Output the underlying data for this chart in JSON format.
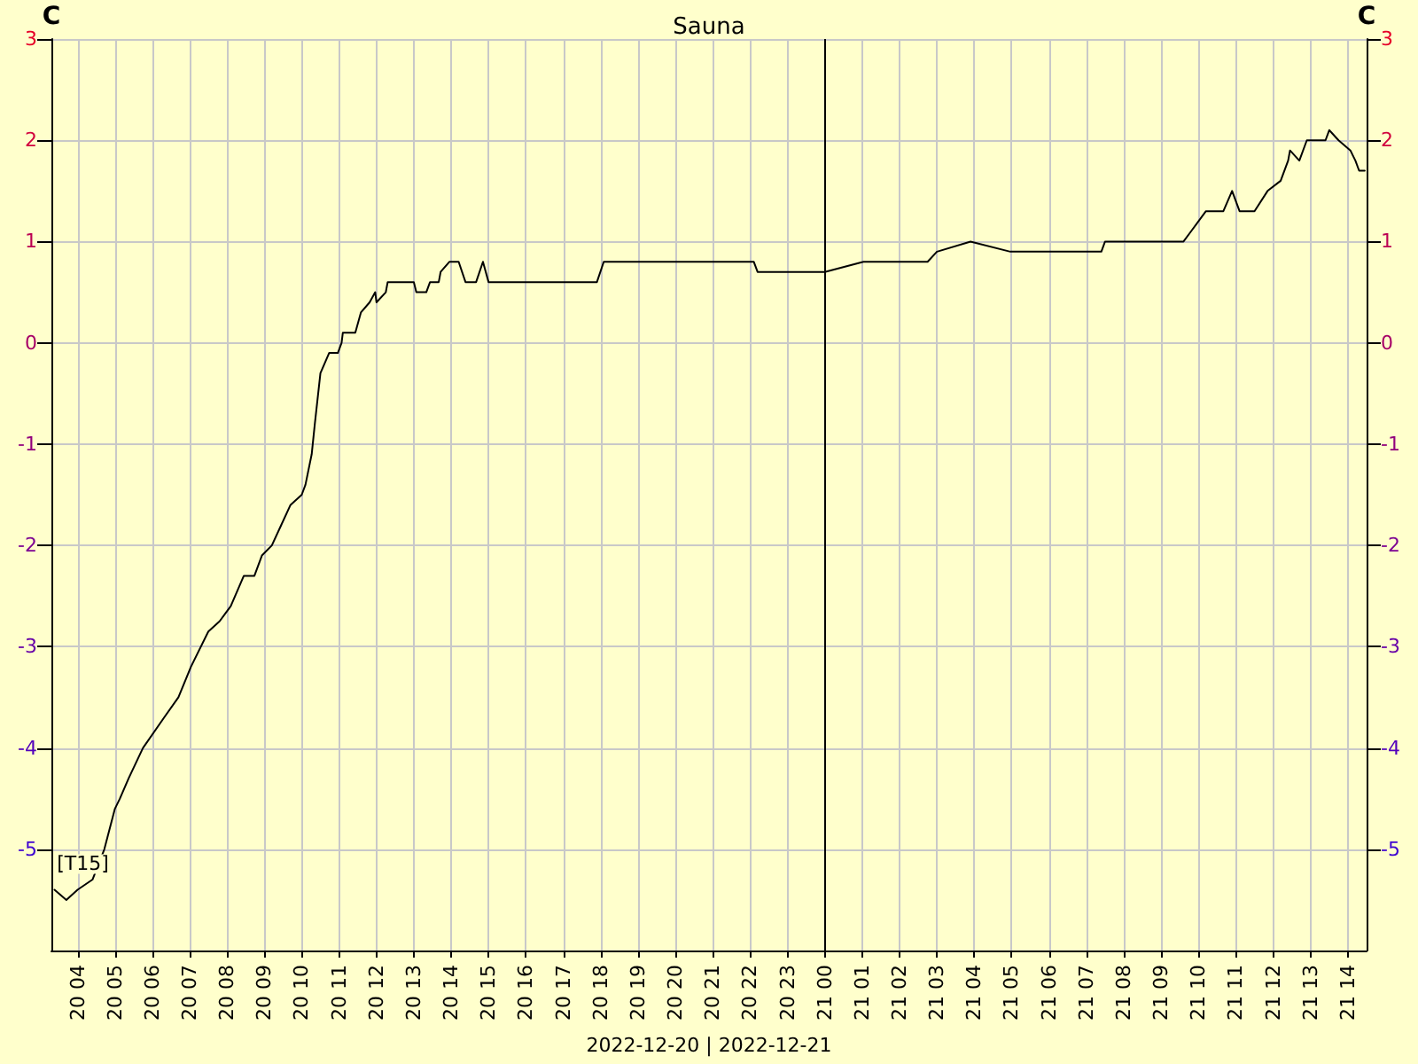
{
  "chart_data": {
    "type": "line",
    "title": "Sauna",
    "xlabel": "2022-12-20 | 2022-12-21",
    "ylabel": "C",
    "y2label": "C",
    "xlim": [
      "2022-12-20T03:18",
      "2022-12-21T14:30"
    ],
    "ylim": [
      -6,
      3
    ],
    "y2lim": [
      -6,
      3
    ],
    "xticks": [
      {
        "value": "2022-12-20T04:00",
        "label": "20 04"
      },
      {
        "value": "2022-12-20T05:00",
        "label": "20 05"
      },
      {
        "value": "2022-12-20T06:00",
        "label": "20 06"
      },
      {
        "value": "2022-12-20T07:00",
        "label": "20 07"
      },
      {
        "value": "2022-12-20T08:00",
        "label": "20 08"
      },
      {
        "value": "2022-12-20T09:00",
        "label": "20 09"
      },
      {
        "value": "2022-12-20T10:00",
        "label": "20 10"
      },
      {
        "value": "2022-12-20T11:00",
        "label": "20 11"
      },
      {
        "value": "2022-12-20T12:00",
        "label": "20 12"
      },
      {
        "value": "2022-12-20T13:00",
        "label": "20 13"
      },
      {
        "value": "2022-12-20T14:00",
        "label": "20 14"
      },
      {
        "value": "2022-12-20T15:00",
        "label": "20 15"
      },
      {
        "value": "2022-12-20T16:00",
        "label": "20 16"
      },
      {
        "value": "2022-12-20T17:00",
        "label": "20 17"
      },
      {
        "value": "2022-12-20T18:00",
        "label": "20 18"
      },
      {
        "value": "2022-12-20T19:00",
        "label": "20 19"
      },
      {
        "value": "2022-12-20T20:00",
        "label": "20 20"
      },
      {
        "value": "2022-12-20T21:00",
        "label": "20 21"
      },
      {
        "value": "2022-12-20T22:00",
        "label": "20 22"
      },
      {
        "value": "2022-12-20T23:00",
        "label": "20 23"
      },
      {
        "value": "2022-12-21T00:00",
        "label": "21 00"
      },
      {
        "value": "2022-12-21T01:00",
        "label": "21 01"
      },
      {
        "value": "2022-12-21T02:00",
        "label": "21 02"
      },
      {
        "value": "2022-12-21T03:00",
        "label": "21 03"
      },
      {
        "value": "2022-12-21T04:00",
        "label": "21 04"
      },
      {
        "value": "2022-12-21T05:00",
        "label": "21 05"
      },
      {
        "value": "2022-12-21T06:00",
        "label": "21 06"
      },
      {
        "value": "2022-12-21T07:00",
        "label": "21 07"
      },
      {
        "value": "2022-12-21T08:00",
        "label": "21 08"
      },
      {
        "value": "2022-12-21T09:00",
        "label": "21 09"
      },
      {
        "value": "2022-12-21T10:00",
        "label": "21 10"
      },
      {
        "value": "2022-12-21T11:00",
        "label": "21 11"
      },
      {
        "value": "2022-12-21T12:00",
        "label": "21 12"
      },
      {
        "value": "2022-12-21T13:00",
        "label": "21 13"
      },
      {
        "value": "2022-12-21T14:00",
        "label": "21 14"
      }
    ],
    "yticks": [
      -5,
      -4,
      -3,
      -2,
      -1,
      0,
      1,
      2,
      3
    ],
    "y2ticks": [
      -5,
      -4,
      -3,
      -2,
      -1,
      0,
      1,
      2,
      3
    ],
    "grid": true,
    "marker": "none",
    "line_style": "solid",
    "ref_lines": [
      {
        "axis": "x",
        "value": "2022-12-21T00:00",
        "label": null,
        "color": "#000000"
      }
    ],
    "series": [
      {
        "name": "[T15]",
        "color": "#000000",
        "x": [
          "2022-12-20T03:23",
          "2022-12-20T03:42",
          "2022-12-20T04:00",
          "2022-12-20T04:24",
          "2022-12-20T04:43",
          "2022-12-20T05:00",
          "2022-12-20T05:08",
          "2022-12-20T05:22",
          "2022-12-20T05:45",
          "2022-12-20T06:19",
          "2022-12-20T06:42",
          "2022-12-20T07:02",
          "2022-12-20T07:30",
          "2022-12-20T07:48",
          "2022-12-20T08:06",
          "2022-12-20T08:27",
          "2022-12-20T08:44",
          "2022-12-20T08:56",
          "2022-12-20T09:12",
          "2022-12-20T09:27",
          "2022-12-20T09:42",
          "2022-12-20T10:00",
          "2022-12-20T10:06",
          "2022-12-20T10:16",
          "2022-12-20T10:21",
          "2022-12-20T10:30",
          "2022-12-20T10:44",
          "2022-12-20T10:58",
          "2022-12-20T11:04",
          "2022-12-20T11:06",
          "2022-12-20T11:26",
          "2022-12-20T11:35",
          "2022-12-20T11:49",
          "2022-12-20T11:58",
          "2022-12-20T12:00",
          "2022-12-20T12:15",
          "2022-12-20T12:18",
          "2022-12-20T13:00",
          "2022-12-20T13:04",
          "2022-12-20T13:20",
          "2022-12-20T13:26",
          "2022-12-20T13:40",
          "2022-12-20T13:43",
          "2022-12-20T13:57",
          "2022-12-20T14:12",
          "2022-12-20T14:23",
          "2022-12-20T14:40",
          "2022-12-20T14:51",
          "2022-12-20T15:00",
          "2022-12-20T17:54",
          "2022-12-20T18:05",
          "2022-12-20T22:06",
          "2022-12-20T22:12",
          "2022-12-21T00:00",
          "2022-12-21T01:02",
          "2022-12-21T02:45",
          "2022-12-21T03:00",
          "2022-12-21T03:54",
          "2022-12-21T04:58",
          "2022-12-21T07:24",
          "2022-12-21T07:30",
          "2022-12-21T08:42",
          "2022-12-21T09:36",
          "2022-12-21T09:48",
          "2022-12-21T10:12",
          "2022-12-21T10:40",
          "2022-12-21T10:54",
          "2022-12-21T11:06",
          "2022-12-21T11:30",
          "2022-12-21T11:51",
          "2022-12-21T12:12",
          "2022-12-21T12:24",
          "2022-12-21T12:27",
          "2022-12-21T12:42",
          "2022-12-21T12:54",
          "2022-12-21T13:24",
          "2022-12-21T13:30",
          "2022-12-21T13:45",
          "2022-12-21T14:04",
          "2022-12-21T14:12",
          "2022-12-21T14:18",
          "2022-12-21T14:27"
        ],
        "values": [
          -5.4,
          -5.5,
          -5.4,
          -5.3,
          -5.0,
          -4.6,
          -4.5,
          -4.3,
          -4.0,
          -3.7,
          -3.5,
          -3.2,
          -2.85,
          -2.75,
          -2.6,
          -2.3,
          -2.3,
          -2.1,
          -2.0,
          -1.8,
          -1.6,
          -1.5,
          -1.4,
          -1.1,
          -0.8,
          -0.3,
          -0.1,
          -0.1,
          0,
          0.1,
          0.1,
          0.3,
          0.4,
          0.5,
          0.4,
          0.5,
          0.6,
          0.6,
          0.5,
          0.5,
          0.6,
          0.6,
          0.7,
          0.8,
          0.8,
          0.6,
          0.6,
          0.8,
          0.6,
          0.6,
          0.8,
          0.8,
          0.7,
          0.7,
          0.8,
          0.8,
          0.9,
          1.0,
          0.9,
          0.9,
          1.0,
          1.0,
          1.0,
          1.1,
          1.3,
          1.3,
          1.5,
          1.3,
          1.3,
          1.5,
          1.6,
          1.8,
          1.9,
          1.8,
          2.0,
          2.0,
          2.1,
          2.0,
          1.9,
          1.8,
          1.7,
          1.7
        ]
      }
    ]
  }
}
